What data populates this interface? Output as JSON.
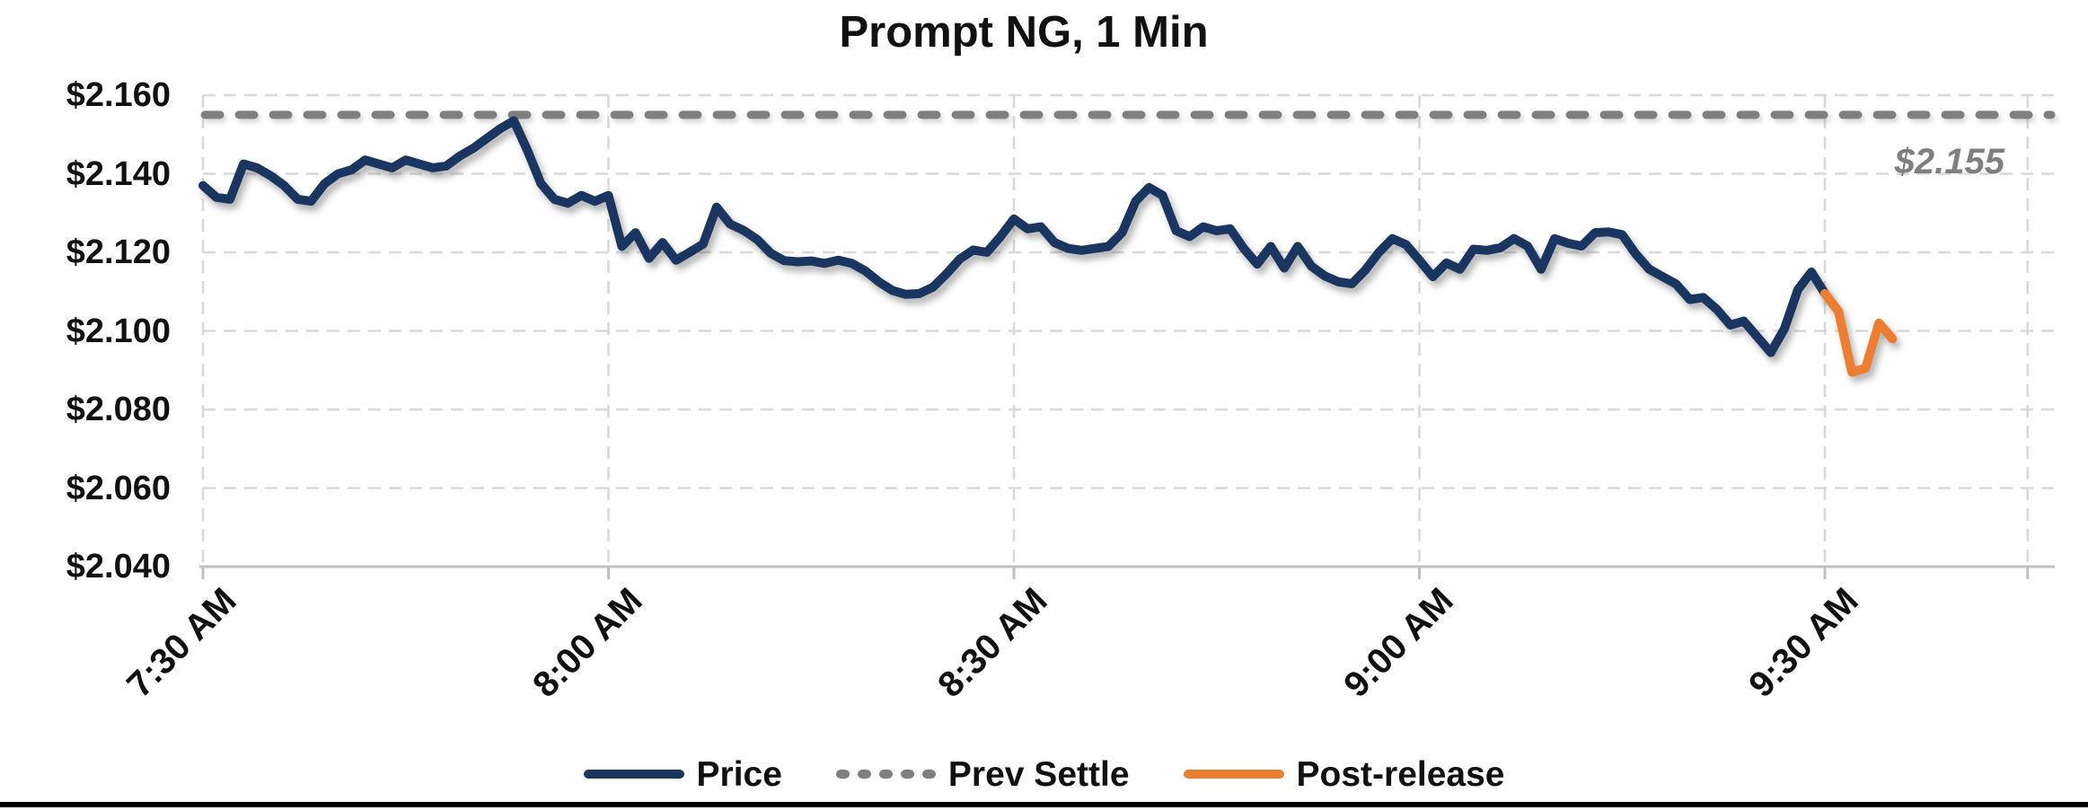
{
  "legend": {
    "price_label": "Price",
    "prev_settle_label": "Prev Settle",
    "post_release_label": "Post-release"
  },
  "colors": {
    "price": "#1A3660",
    "post_release": "#ED7D31",
    "prev_settle": "#7F7F7F",
    "gridline": "#D9D9D9",
    "axis_line": "#BFBFBF",
    "text": "#111111",
    "background": "#FFFFFF",
    "bottom_border": "#000000"
  },
  "chart_data": {
    "type": "line",
    "title": "Prompt NG, 1 Min",
    "grid": true,
    "legend_position": "bottom",
    "x_axis": {
      "tick_labels": [
        "7:30 AM",
        "8:00 AM",
        "8:30 AM",
        "9:00 AM",
        "9:30 AM"
      ],
      "tick_minutes": [
        0,
        30,
        60,
        90,
        120
      ],
      "axis_end_minute": 135,
      "minutes_per_point": 1,
      "start_time": "7:30 AM"
    },
    "y_axis": {
      "tick_labels": [
        "$2.160",
        "$2.140",
        "$2.120",
        "$2.100",
        "$2.080",
        "$2.060",
        "$2.040"
      ],
      "tick_values": [
        2.16,
        2.14,
        2.12,
        2.1,
        2.08,
        2.06,
        2.04
      ],
      "min": 2.04,
      "max": 2.16,
      "step": 0.02,
      "format": "$0.000"
    },
    "prev_settle": {
      "name": "Prev Settle",
      "value": 2.155,
      "label": "$2.155",
      "style": "dashed"
    },
    "series": [
      {
        "name": "Price",
        "style": "solid",
        "start_minute": 0,
        "values": [
          2.137,
          2.134,
          2.1335,
          2.1425,
          2.1415,
          2.1395,
          2.137,
          2.1335,
          2.133,
          2.1375,
          2.14,
          2.141,
          2.1435,
          2.1425,
          2.1415,
          2.1435,
          2.1425,
          2.1415,
          2.142,
          2.1445,
          2.1465,
          2.149,
          2.1515,
          2.1535,
          2.146,
          2.1375,
          2.1335,
          2.1325,
          2.1345,
          2.133,
          2.1345,
          2.1215,
          2.125,
          2.1185,
          2.1225,
          2.118,
          2.12,
          2.1221,
          2.1315,
          2.1272,
          2.1256,
          2.1233,
          2.1198,
          2.1179,
          2.1176,
          2.1178,
          2.1172,
          2.118,
          2.1172,
          2.1153,
          2.1125,
          2.1103,
          2.1093,
          2.1095,
          2.1111,
          2.1145,
          2.1183,
          2.1206,
          2.12,
          2.124,
          2.1285,
          2.126,
          2.1265,
          2.1225,
          2.121,
          2.1205,
          2.121,
          2.1215,
          2.125,
          2.133,
          2.1365,
          2.1345,
          2.1255,
          2.124,
          2.1265,
          2.1255,
          2.126,
          2.121,
          2.117,
          2.1215,
          2.116,
          2.1215,
          2.1165,
          2.114,
          2.1125,
          2.112,
          2.1155,
          2.12,
          2.1235,
          2.122,
          2.118,
          2.1138,
          2.1173,
          2.1157,
          2.1208,
          2.1205,
          2.1212,
          2.1235,
          2.1216,
          2.1157,
          2.1235,
          2.1223,
          2.1216,
          2.125,
          2.1252,
          2.1245,
          2.1196,
          2.1157,
          2.1138,
          2.1119,
          2.108,
          2.1085,
          2.1055,
          2.1015,
          2.1025,
          2.0985,
          2.0945,
          2.1005,
          2.1105,
          2.115,
          2.1095
        ]
      },
      {
        "name": "Post-release",
        "style": "solid",
        "start_minute": 120,
        "values": [
          2.1095,
          2.105,
          2.0895,
          2.0905,
          2.102,
          2.098
        ]
      }
    ]
  }
}
